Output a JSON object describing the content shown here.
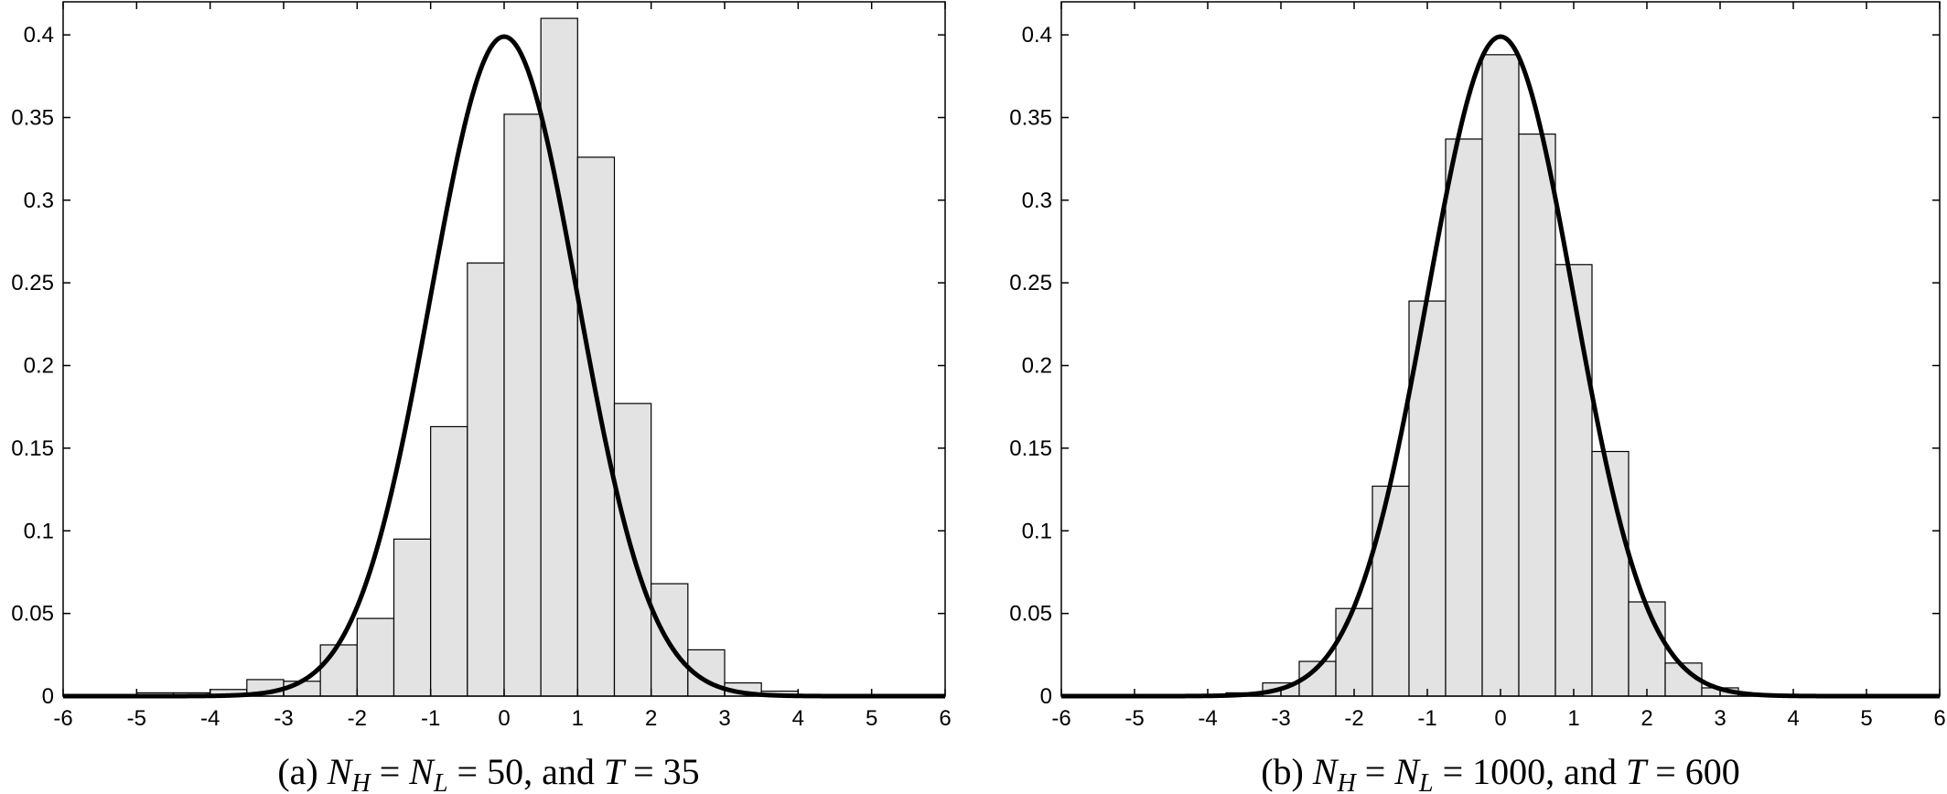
{
  "chart_data": [
    {
      "type": "histogram",
      "caption": {
        "prefix": "(a) ",
        "NH": "N",
        "NH_sub": "H",
        "eq1": " = ",
        "NL": "N",
        "NL_sub": "L",
        "eq2": " = 50, and ",
        "T": "T",
        "eq3": " = 35"
      },
      "xlim": [
        -6,
        6
      ],
      "ylim": [
        0,
        0.42
      ],
      "xticks": [
        "-6",
        "-5",
        "-4",
        "-3",
        "-2",
        "-1",
        "0",
        "1",
        "2",
        "3",
        "4",
        "5",
        "6"
      ],
      "yticks": [
        "0",
        "0.05",
        "0.1",
        "0.15",
        "0.2",
        "0.25",
        "0.3",
        "0.35",
        "0.4"
      ],
      "bin_width": 0.5,
      "bins": [
        {
          "x0": -6.0,
          "value": 0.001
        },
        {
          "x0": -5.5,
          "value": 0.001
        },
        {
          "x0": -5.0,
          "value": 0.002
        },
        {
          "x0": -4.5,
          "value": 0.002
        },
        {
          "x0": -4.0,
          "value": 0.004
        },
        {
          "x0": -3.5,
          "value": 0.01
        },
        {
          "x0": -3.0,
          "value": 0.009
        },
        {
          "x0": -2.5,
          "value": 0.031
        },
        {
          "x0": -2.0,
          "value": 0.047
        },
        {
          "x0": -1.5,
          "value": 0.095
        },
        {
          "x0": -1.0,
          "value": 0.163
        },
        {
          "x0": -0.5,
          "value": 0.262
        },
        {
          "x0": 0.0,
          "value": 0.352
        },
        {
          "x0": 0.5,
          "value": 0.41
        },
        {
          "x0": 1.0,
          "value": 0.326
        },
        {
          "x0": 1.5,
          "value": 0.177
        },
        {
          "x0": 2.0,
          "value": 0.068
        },
        {
          "x0": 2.5,
          "value": 0.028
        },
        {
          "x0": 3.0,
          "value": 0.008
        },
        {
          "x0": 3.5,
          "value": 0.003
        },
        {
          "x0": 4.0,
          "value": 0.001
        }
      ],
      "curve": "standard normal density"
    },
    {
      "type": "histogram",
      "caption": {
        "prefix": "(b) ",
        "NH": "N",
        "NH_sub": "H",
        "eq1": " = ",
        "NL": "N",
        "NL_sub": "L",
        "eq2": " = 1000, and ",
        "T": "T",
        "eq3": " = 600"
      },
      "xlim": [
        -6,
        6
      ],
      "ylim": [
        0,
        0.42
      ],
      "xticks": [
        "-6",
        "-5",
        "-4",
        "-3",
        "-2",
        "-1",
        "0",
        "1",
        "2",
        "3",
        "4",
        "5",
        "6"
      ],
      "yticks": [
        "0",
        "0.05",
        "0.1",
        "0.15",
        "0.2",
        "0.25",
        "0.3",
        "0.35",
        "0.4"
      ],
      "bin_width": 0.5,
      "bins": [
        {
          "x0": -3.75,
          "value": 0.002
        },
        {
          "x0": -3.25,
          "value": 0.008
        },
        {
          "x0": -2.75,
          "value": 0.021
        },
        {
          "x0": -2.25,
          "value": 0.053
        },
        {
          "x0": -1.75,
          "value": 0.127
        },
        {
          "x0": -1.25,
          "value": 0.239
        },
        {
          "x0": -0.75,
          "value": 0.337
        },
        {
          "x0": -0.25,
          "value": 0.388
        },
        {
          "x0": 0.25,
          "value": 0.34
        },
        {
          "x0": 0.75,
          "value": 0.261
        },
        {
          "x0": 1.25,
          "value": 0.148
        },
        {
          "x0": 1.75,
          "value": 0.057
        },
        {
          "x0": 2.25,
          "value": 0.02
        },
        {
          "x0": 2.75,
          "value": 0.005
        },
        {
          "x0": 3.25,
          "value": 0.001
        }
      ],
      "curve": "standard normal density"
    }
  ]
}
